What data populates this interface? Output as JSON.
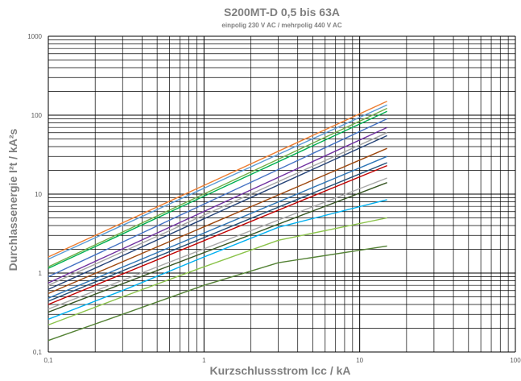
{
  "chart_data": {
    "type": "line",
    "title": "S200MT-D 0,5 bis 63A",
    "subtitle": "einpolig 230 V AC / mehrpolig  440 V AC",
    "xlabel": "Kurzschlussstrom Icc / kA",
    "ylabel": "Durchlassenergie I²t / kA²s",
    "x_scale": "log",
    "y_scale": "log",
    "xlim": [
      0.1,
      100
    ],
    "ylim": [
      0.1,
      1000
    ],
    "grid": true,
    "x_ticks": [
      "0,1",
      "1",
      "10",
      "100"
    ],
    "y_ticks": [
      "0,1",
      "1",
      "10",
      "100",
      "1000"
    ],
    "series": [
      {
        "color": "#ED7D31",
        "points": [
          [
            0.1,
            1.6
          ],
          [
            15,
            150
          ]
        ]
      },
      {
        "color": "#5B9BD5",
        "points": [
          [
            0.1,
            1.5
          ],
          [
            15,
            135
          ]
        ]
      },
      {
        "color": "#70AD47",
        "points": [
          [
            0.1,
            1.2
          ],
          [
            15,
            122
          ]
        ]
      },
      {
        "color": "#00B050",
        "points": [
          [
            0.1,
            1.15
          ],
          [
            15,
            112
          ]
        ]
      },
      {
        "color": "#4472C4",
        "points": [
          [
            0.1,
            0.9
          ],
          [
            15,
            90
          ]
        ]
      },
      {
        "color": "#7030A0",
        "points": [
          [
            0.1,
            0.75
          ],
          [
            15,
            70
          ]
        ]
      },
      {
        "color": "#A5A5A5",
        "points": [
          [
            0.1,
            0.7
          ],
          [
            15,
            60
          ]
        ]
      },
      {
        "color": "#264478",
        "points": [
          [
            0.1,
            0.62
          ],
          [
            15,
            55
          ]
        ]
      },
      {
        "color": "#9E480E",
        "points": [
          [
            0.1,
            0.55
          ],
          [
            15,
            38
          ]
        ]
      },
      {
        "color": "#2E75B6",
        "points": [
          [
            0.1,
            0.48
          ],
          [
            15,
            30
          ]
        ]
      },
      {
        "color": "#1F4E79",
        "points": [
          [
            0.1,
            0.44
          ],
          [
            15,
            25
          ]
        ]
      },
      {
        "color": "#C00000",
        "points": [
          [
            0.1,
            0.4
          ],
          [
            15,
            23
          ]
        ]
      },
      {
        "color": "#A9A9A9",
        "points": [
          [
            0.1,
            0.35
          ],
          [
            15,
            16
          ]
        ]
      },
      {
        "color": "#375623",
        "points": [
          [
            0.1,
            0.32
          ],
          [
            15,
            14
          ]
        ]
      },
      {
        "color": "#00B0F0",
        "points": [
          [
            0.1,
            0.26
          ],
          [
            0.3,
            0.6
          ],
          [
            1,
            1.6
          ],
          [
            3,
            3.8
          ],
          [
            15,
            8.5
          ]
        ]
      },
      {
        "color": "#8BC34A",
        "points": [
          [
            0.1,
            0.22
          ],
          [
            0.3,
            0.5
          ],
          [
            1,
            1.2
          ],
          [
            3,
            2.6
          ],
          [
            15,
            5
          ]
        ]
      },
      {
        "color": "#548235",
        "points": [
          [
            0.1,
            0.14
          ],
          [
            0.3,
            0.3
          ],
          [
            1,
            0.7
          ],
          [
            3,
            1.35
          ],
          [
            15,
            2.2
          ]
        ]
      }
    ]
  }
}
